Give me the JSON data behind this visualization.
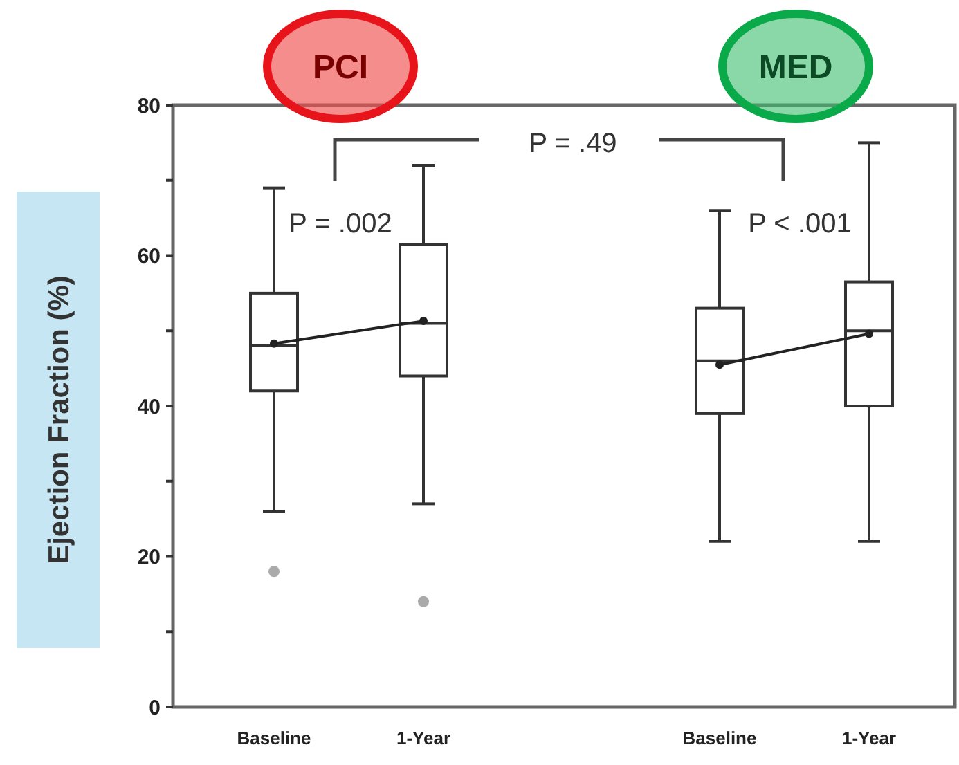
{
  "chart_data": {
    "type": "box",
    "ylabel": "Ejection Fraction (%)",
    "categories": [
      "Baseline",
      "1-Year",
      "Baseline",
      "1-Year"
    ],
    "ylim": [
      0,
      80
    ],
    "yticks": [
      0,
      {
        "value": 10,
        "label": null
      },
      20,
      {
        "value": 30,
        "label": null
      },
      40,
      {
        "value": 50,
        "label": null
      },
      60,
      {
        "value": 70,
        "label": null
      },
      80
    ],
    "boxes": [
      {
        "low": 26,
        "q1": 42,
        "median": 48,
        "q3": 55,
        "high": 69,
        "outliers": [
          18
        ]
      },
      {
        "low": 27,
        "q1": 44,
        "median": 51,
        "q3": 61.5,
        "high": 72,
        "outliers": [
          14
        ]
      },
      {
        "low": 22,
        "q1": 39,
        "median": 46,
        "q3": 53,
        "high": 66
      },
      {
        "low": 22,
        "q1": 40,
        "median": 50,
        "q3": 56.5,
        "high": 75
      }
    ],
    "series": [
      {
        "type": "line",
        "color": "#222222",
        "values": [
          48.3,
          51.3,
          null,
          null
        ]
      },
      {
        "type": "line",
        "color": "#222222",
        "values": [
          null,
          null,
          45.5,
          49.6
        ]
      }
    ],
    "marker": "circle",
    "grid": false,
    "annotations": [
      "PCI",
      "MED",
      "P = .49",
      "P = .002",
      "P < .001"
    ]
  }
}
